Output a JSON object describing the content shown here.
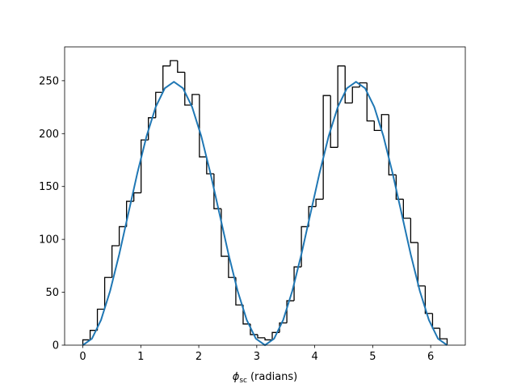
{
  "chart_data": {
    "type": "histogram",
    "bins": [
      0,
      0.126,
      0.251,
      0.377,
      0.503,
      0.628,
      0.754,
      0.88,
      1.005,
      1.131,
      1.257,
      1.382,
      1.508,
      1.634,
      1.759,
      1.885,
      2.011,
      2.136,
      2.262,
      2.388,
      2.513,
      2.639,
      2.765,
      2.89,
      3.016,
      3.142,
      3.267,
      3.393,
      3.519,
      3.644,
      3.77,
      3.896,
      4.021,
      4.147,
      4.273,
      4.398,
      4.524,
      4.65,
      4.775,
      4.901,
      5.027,
      5.152,
      5.278,
      5.404,
      5.529,
      5.655,
      5.781,
      5.906,
      6.032,
      6.158,
      6.283
    ],
    "values": [
      5,
      14,
      34,
      64,
      94,
      112,
      136,
      144,
      194,
      215,
      239,
      264,
      269,
      258,
      227,
      237,
      178,
      162,
      129,
      84,
      64,
      38,
      20,
      10,
      7,
      5,
      12,
      21,
      42,
      74,
      112,
      131,
      138,
      236,
      187,
      264,
      229,
      244,
      248,
      212,
      203,
      218,
      161,
      138,
      120,
      97,
      56,
      30,
      16,
      6
    ],
    "color": "#000000",
    "fit": {
      "type": "line",
      "color": "#1f77b4",
      "x": [
        0,
        0.157,
        0.314,
        0.471,
        0.628,
        0.785,
        0.942,
        1.1,
        1.257,
        1.414,
        1.571,
        1.728,
        1.885,
        2.042,
        2.199,
        2.356,
        2.513,
        2.67,
        2.827,
        2.985,
        3.142,
        3.299,
        3.456,
        3.613,
        3.77,
        3.927,
        4.084,
        4.241,
        4.398,
        4.555,
        4.712,
        4.869,
        5.027,
        5.184,
        5.341,
        5.498,
        5.655,
        5.812,
        5.969,
        6.126,
        6.283
      ],
      "values": [
        0,
        6.1,
        23.8,
        51.3,
        86.0,
        124.5,
        163.0,
        197.7,
        225.2,
        242.9,
        249,
        242.9,
        225.2,
        197.7,
        163.0,
        124.5,
        86.0,
        51.3,
        23.8,
        6.1,
        0,
        6.1,
        23.8,
        51.3,
        86.0,
        124.5,
        163.0,
        197.7,
        225.2,
        242.9,
        249,
        242.9,
        225.2,
        197.7,
        163.0,
        124.5,
        86.0,
        51.3,
        23.8,
        6.1,
        0
      ]
    },
    "xlabel": {
      "symbol": "ϕ",
      "subscript": "sc",
      "text": "(radians)"
    },
    "xlim": [
      -0.314,
      6.597
    ],
    "ylim": [
      0,
      282
    ],
    "xticks": [
      0,
      1,
      2,
      3,
      4,
      5,
      6
    ],
    "yticks": [
      0,
      50,
      100,
      150,
      200,
      250
    ]
  }
}
